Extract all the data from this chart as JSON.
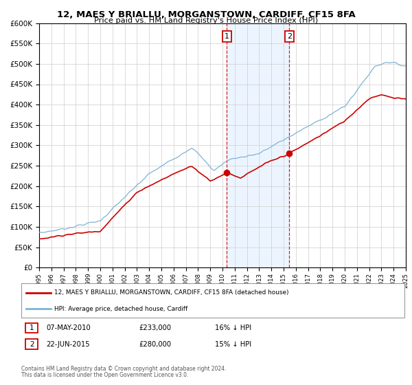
{
  "title": "12, MAES Y BRIALLU, MORGANSTOWN, CARDIFF, CF15 8FA",
  "subtitle": "Price paid vs. HM Land Registry's House Price Index (HPI)",
  "legend_line1": "12, MAES Y BRIALLU, MORGANSTOWN, CARDIFF, CF15 8FA (detached house)",
  "legend_line2": "HPI: Average price, detached house, Cardiff",
  "annotation1_label": "1",
  "annotation1_date": "07-MAY-2010",
  "annotation1_price": "£233,000",
  "annotation1_hpi": "16% ↓ HPI",
  "annotation2_label": "2",
  "annotation2_date": "22-JUN-2015",
  "annotation2_price": "£280,000",
  "annotation2_hpi": "15% ↓ HPI",
  "footer1": "Contains HM Land Registry data © Crown copyright and database right 2024.",
  "footer2": "This data is licensed under the Open Government Licence v3.0.",
  "sale1_year": 2010.36,
  "sale1_value": 233000,
  "sale2_year": 2015.47,
  "sale2_value": 280000,
  "red_color": "#cc0000",
  "blue_color": "#7fb3d3",
  "background_color": "#ffffff",
  "plot_bg_color": "#ffffff",
  "grid_color": "#cccccc",
  "shade_color": "#ddeeff",
  "ylim_max": 600000,
  "ylim_min": 0,
  "xlim_start": 1995,
  "xlim_end": 2025
}
